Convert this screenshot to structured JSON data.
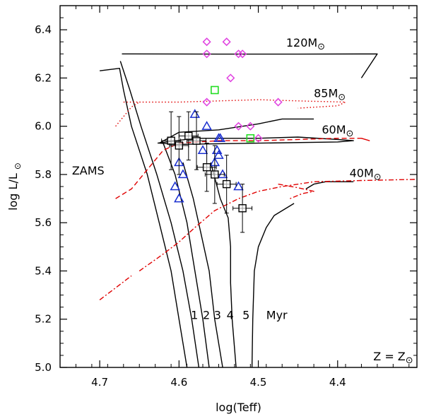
{
  "chart_data": {
    "type": "scatter",
    "title": "",
    "xlabel": "log(Teff)",
    "ylabel_main": "log L/L",
    "ylabel_sub": "⊙",
    "xlim": [
      4.75,
      4.3
    ],
    "ylim": [
      5.0,
      6.5
    ],
    "xticks": [
      4.7,
      4.6,
      4.5,
      4.4
    ],
    "xtick_labels": [
      "4.7",
      "4.6",
      "4.5",
      "4.4"
    ],
    "yticks": [
      5.0,
      5.2,
      5.4,
      5.6,
      5.8,
      6.0,
      6.2,
      6.4
    ],
    "ytick_labels": [
      "5.0",
      "5.2",
      "5.4",
      "5.6",
      "5.8",
      "6.0",
      "6.2",
      "6.4"
    ],
    "colors": {
      "track": "#000000",
      "dashed": "#e00000",
      "magenta": "#e040e0",
      "green": "#22dd22",
      "blue": "#1a2fd0",
      "obs": "#000000"
    },
    "annotations": [
      {
        "id": "zams",
        "text": "ZAMS",
        "x": 4.735,
        "y": 5.8
      },
      {
        "id": "iso1",
        "text": "1",
        "x": 4.585,
        "y": 5.2
      },
      {
        "id": "iso2",
        "text": "2",
        "x": 4.57,
        "y": 5.2
      },
      {
        "id": "iso3",
        "text": "3",
        "x": 4.556,
        "y": 5.2
      },
      {
        "id": "iso4",
        "text": "4",
        "x": 4.54,
        "y": 5.2
      },
      {
        "id": "iso5",
        "text": "5",
        "x": 4.52,
        "y": 5.2
      },
      {
        "id": "myr",
        "text": "Myr",
        "x": 4.49,
        "y": 5.2
      },
      {
        "id": "z",
        "text": "Z = Z",
        "x": 4.355,
        "y": 5.03,
        "sub": "⊙"
      }
    ],
    "mass_labels": [
      {
        "text": "120M",
        "sub": "⊙",
        "x": 4.465,
        "y": 6.33
      },
      {
        "text": "85M",
        "sub": "⊙",
        "x": 4.43,
        "y": 6.12
      },
      {
        "text": "60M",
        "sub": "⊙",
        "x": 4.42,
        "y": 5.97
      },
      {
        "text": "40M",
        "sub": "⊙",
        "x": 4.385,
        "y": 5.79
      }
    ],
    "lines": [
      {
        "id": "zams",
        "style": "solid",
        "color": "track",
        "points": [
          [
            4.7,
            6.23
          ],
          [
            4.675,
            6.24
          ],
          [
            4.67,
            6.15
          ],
          [
            4.66,
            6.0
          ],
          [
            4.64,
            5.8
          ],
          [
            4.625,
            5.6
          ],
          [
            4.61,
            5.4
          ],
          [
            4.6,
            5.2
          ],
          [
            4.59,
            5.0
          ]
        ]
      },
      {
        "id": "iso1",
        "style": "solid",
        "color": "track",
        "points": [
          [
            4.674,
            6.27
          ],
          [
            4.662,
            6.15
          ],
          [
            4.648,
            6.0
          ],
          [
            4.628,
            5.8
          ],
          [
            4.61,
            5.6
          ],
          [
            4.595,
            5.4
          ],
          [
            4.584,
            5.2
          ],
          [
            4.575,
            5.0
          ]
        ]
      },
      {
        "id": "iso2",
        "style": "solid",
        "color": "track",
        "points": [
          [
            4.62,
            5.93
          ],
          [
            4.605,
            5.8
          ],
          [
            4.59,
            5.6
          ],
          [
            4.58,
            5.4
          ],
          [
            4.57,
            5.2
          ],
          [
            4.562,
            5.0
          ]
        ]
      },
      {
        "id": "iso3",
        "style": "solid",
        "color": "track",
        "points": [
          [
            4.595,
            5.85
          ],
          [
            4.582,
            5.7
          ],
          [
            4.572,
            5.55
          ],
          [
            4.562,
            5.4
          ],
          [
            4.555,
            5.2
          ],
          [
            4.545,
            5.0
          ]
        ]
      },
      {
        "id": "iso4",
        "style": "solid",
        "color": "track",
        "points": [
          [
            4.56,
            5.85
          ],
          [
            4.548,
            5.7
          ],
          [
            4.538,
            5.62
          ],
          [
            4.535,
            5.5
          ],
          [
            4.535,
            5.35
          ],
          [
            4.533,
            5.2
          ],
          [
            4.528,
            5.0
          ]
        ]
      },
      {
        "id": "iso5",
        "style": "solid",
        "color": "track",
        "points": [
          [
            4.455,
            5.68
          ],
          [
            4.48,
            5.63
          ],
          [
            4.49,
            5.58
          ],
          [
            4.5,
            5.5
          ],
          [
            4.505,
            5.4
          ],
          [
            4.507,
            5.2
          ],
          [
            4.508,
            5.0
          ]
        ]
      },
      {
        "id": "track120",
        "style": "solid",
        "color": "track",
        "points": [
          [
            4.672,
            6.3
          ],
          [
            4.66,
            6.3
          ],
          [
            4.55,
            6.299
          ],
          [
            4.45,
            6.299
          ],
          [
            4.35,
            6.3
          ],
          [
            4.36,
            6.25
          ],
          [
            4.37,
            6.2
          ]
        ]
      },
      {
        "id": "track60",
        "style": "solid",
        "color": "track",
        "points": [
          [
            4.627,
            5.93
          ],
          [
            4.58,
            5.95
          ],
          [
            4.55,
            5.95
          ],
          [
            4.5,
            5.95
          ],
          [
            4.45,
            5.955
          ],
          [
            4.4,
            5.945
          ],
          [
            4.38,
            5.94
          ],
          [
            4.4,
            5.935
          ],
          [
            4.5,
            5.93
          ],
          [
            4.6,
            5.925
          ],
          [
            4.625,
            5.93
          ],
          [
            4.6,
            5.975
          ],
          [
            4.55,
            5.985
          ],
          [
            4.5,
            6.01
          ],
          [
            4.47,
            6.03
          ],
          [
            4.43,
            6.03
          ]
        ]
      },
      {
        "id": "track40",
        "style": "solid",
        "color": "track",
        "points": [
          [
            4.44,
            5.74
          ],
          [
            4.43,
            5.76
          ],
          [
            4.415,
            5.77
          ],
          [
            4.38,
            5.77
          ]
        ]
      },
      {
        "id": "track85",
        "style": "dotted",
        "color": "dashed",
        "points": [
          [
            4.67,
            6.1
          ],
          [
            4.6,
            6.1
          ],
          [
            4.5,
            6.11
          ],
          [
            4.45,
            6.105
          ],
          [
            4.39,
            6.1
          ],
          [
            4.4,
            6.085
          ],
          [
            4.45,
            6.075
          ]
        ]
      },
      {
        "id": "track85_lower",
        "style": "dotted",
        "color": "dashed",
        "points": [
          [
            4.68,
            6.0
          ],
          [
            4.67,
            6.04
          ],
          [
            4.66,
            6.08
          ],
          [
            4.65,
            6.1
          ]
        ]
      },
      {
        "id": "track60_dash",
        "style": "dashed",
        "color": "dashed",
        "points": [
          [
            4.68,
            5.7
          ],
          [
            4.66,
            5.74
          ],
          [
            4.64,
            5.82
          ],
          [
            4.62,
            5.9
          ],
          [
            4.6,
            5.93
          ],
          [
            4.55,
            5.94
          ],
          [
            4.5,
            5.94
          ],
          [
            4.45,
            5.945
          ],
          [
            4.4,
            5.95
          ],
          [
            4.37,
            5.95
          ],
          [
            4.36,
            5.94
          ],
          [
            4.37,
            5.95
          ]
        ]
      },
      {
        "id": "track40_dashdot",
        "style": "dashdot",
        "color": "dashed",
        "points": [
          [
            4.65,
            5.4
          ],
          [
            4.62,
            5.47
          ],
          [
            4.6,
            5.52
          ],
          [
            4.58,
            5.58
          ],
          [
            4.555,
            5.65
          ],
          [
            4.525,
            5.7
          ],
          [
            4.5,
            5.73
          ],
          [
            4.47,
            5.75
          ],
          [
            4.43,
            5.77
          ],
          [
            4.37,
            5.775
          ],
          [
            4.3,
            5.78
          ]
        ]
      },
      {
        "id": "track40_lower",
        "style": "dashdot",
        "color": "dashed",
        "points": [
          [
            4.7,
            5.28
          ],
          [
            4.68,
            5.33
          ],
          [
            4.66,
            5.38
          ]
        ]
      },
      {
        "id": "track40_loop",
        "style": "dashdot",
        "color": "dashed",
        "points": [
          [
            4.475,
            5.76
          ],
          [
            4.45,
            5.745
          ],
          [
            4.43,
            5.73
          ],
          [
            4.445,
            5.72
          ],
          [
            4.46,
            5.7
          ]
        ]
      }
    ],
    "series": [
      {
        "name": "magenta_diamonds",
        "marker": "diamond",
        "color": "magenta",
        "points": [
          [
            4.565,
            6.35
          ],
          [
            4.565,
            6.3
          ],
          [
            4.54,
            6.35
          ],
          [
            4.525,
            6.3
          ],
          [
            4.52,
            6.3
          ],
          [
            4.535,
            6.2
          ],
          [
            4.565,
            6.1
          ],
          [
            4.475,
            6.1
          ],
          [
            4.525,
            6.0
          ],
          [
            4.51,
            6.0
          ],
          [
            4.5,
            5.95
          ]
        ]
      },
      {
        "name": "green_squares",
        "marker": "square",
        "color": "green",
        "points": [
          [
            4.555,
            6.15
          ],
          [
            4.51,
            5.95
          ]
        ]
      },
      {
        "name": "blue_triangles",
        "marker": "triangle",
        "color": "blue",
        "points": [
          [
            4.58,
            6.05
          ],
          [
            4.565,
            6.0
          ],
          [
            4.55,
            5.95
          ],
          [
            4.548,
            5.95
          ],
          [
            4.552,
            5.9
          ],
          [
            4.57,
            5.9
          ],
          [
            4.555,
            5.85
          ],
          [
            4.545,
            5.8
          ],
          [
            4.6,
            5.85
          ],
          [
            4.595,
            5.8
          ],
          [
            4.6,
            5.7
          ],
          [
            4.605,
            5.75
          ],
          [
            4.525,
            5.75
          ],
          [
            4.55,
            5.88
          ]
        ]
      },
      {
        "name": "observed_squares",
        "marker": "square_err",
        "color": "obs",
        "points": [
          [
            4.61,
            5.94
          ],
          [
            4.6,
            5.92
          ],
          [
            4.588,
            5.96
          ],
          [
            4.578,
            5.94
          ],
          [
            4.565,
            5.83
          ],
          [
            4.555,
            5.8
          ],
          [
            4.54,
            5.76
          ],
          [
            4.52,
            5.66
          ]
        ],
        "xerr": [
          0.012,
          0.012,
          0.012,
          0.012,
          0.012,
          0.012,
          0.012,
          0.012
        ],
        "yerr": [
          0.12,
          0.12,
          0.1,
          0.12,
          0.1,
          0.12,
          0.12,
          0.1
        ]
      }
    ]
  }
}
